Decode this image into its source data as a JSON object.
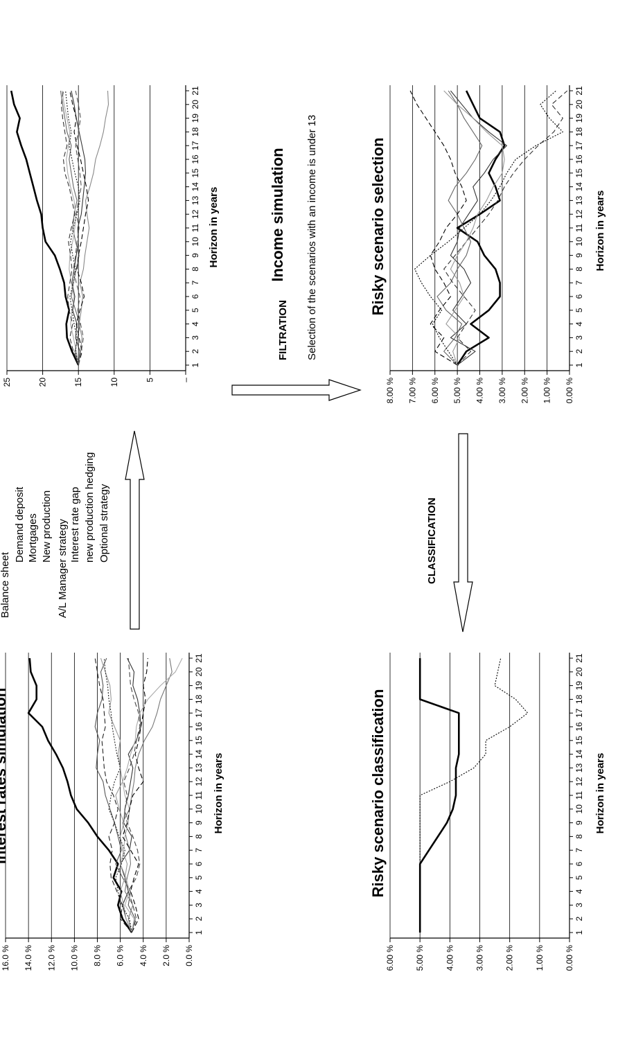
{
  "panels": {
    "interest": {
      "title": "Interest rates simulation",
      "xlabel": "Horizon in years",
      "yticks": [
        "0.0 %",
        "2.0 %",
        "4.0 %",
        "6.0 %",
        "8.0 %",
        "10.0 %",
        "12.0 %",
        "14.0 %",
        "16.0 %"
      ],
      "xticks": [
        "1",
        "2",
        "3",
        "4",
        "5",
        "6",
        "7",
        "8",
        "9",
        "10",
        "11",
        "12",
        "13",
        "14",
        "15",
        "16",
        "17",
        "18",
        "19",
        "20",
        "21"
      ]
    },
    "income": {
      "title": "Income simulation",
      "xlabel": "Horizon in years",
      "yticks": [
        "–",
        "5",
        "10",
        "15",
        "20",
        "25"
      ],
      "xticks": [
        "1",
        "2",
        "3",
        "4",
        "5",
        "6",
        "7",
        "8",
        "9",
        "10",
        "11",
        "12",
        "13",
        "14",
        "15",
        "16",
        "17",
        "18",
        "19",
        "20",
        "21"
      ]
    },
    "selection": {
      "title": "Risky scenario selection",
      "xlabel": "Horizon in years",
      "yticks": [
        "0.00 %",
        "1.00 %",
        "2.00 %",
        "3.00 %",
        "4.00 %",
        "5.00 %",
        "6.00 %",
        "7.00 %",
        "8.00 %"
      ],
      "xticks": [
        "1",
        "2",
        "3",
        "4",
        "5",
        "6",
        "7",
        "8",
        "9",
        "10",
        "11",
        "12",
        "13",
        "14",
        "15",
        "16",
        "17",
        "18",
        "19",
        "20",
        "21"
      ]
    },
    "classification": {
      "title": "Risky scenario classification",
      "xlabel": "Horizon in years",
      "yticks": [
        "0.00 %",
        "1.00 %",
        "2.00 %",
        "3.00 %",
        "4.00 %",
        "5.00 %",
        "6.00 %"
      ],
      "xticks": [
        "1",
        "2",
        "3",
        "4",
        "5",
        "6",
        "7",
        "8",
        "9",
        "10",
        "11",
        "12",
        "13",
        "14",
        "15",
        "16",
        "17",
        "18",
        "19",
        "20",
        "21"
      ]
    }
  },
  "balance": {
    "lines": [
      "Balance sheet",
      "Demand deposit",
      "Mortgages",
      "New production",
      "A/L Manager strategy",
      "Interest rate gap",
      "new production hedging",
      "Optional strategy"
    ]
  },
  "filtration": {
    "label": "FILTRATION",
    "description": "Selection of the scenarios with an income is under 13"
  },
  "classification_label": "CLASSIFICATION",
  "chart_data": [
    {
      "type": "line",
      "title": "Interest rates simulation",
      "xlabel": "Horizon in years",
      "ylim": [
        0,
        16
      ],
      "x": [
        1,
        2,
        3,
        4,
        5,
        6,
        7,
        8,
        9,
        10,
        11,
        12,
        13,
        14,
        15,
        16,
        17,
        18,
        19,
        20,
        21
      ],
      "series": [
        {
          "style": "bold",
          "color": "#000000",
          "values": [
            5.0,
            5.8,
            6.2,
            5.9,
            6.6,
            6.2,
            7.0,
            8.0,
            8.8,
            9.8,
            10.3,
            10.6,
            11.0,
            11.6,
            12.3,
            12.8,
            14.0,
            13.3,
            13.3,
            13.8,
            13.9
          ]
        },
        {
          "style": "solid",
          "color": "#333333",
          "values": [
            5.0,
            5.5,
            5.8,
            5.3,
            5.6,
            6.0,
            5.2,
            5.0,
            5.7,
            5.6,
            5.3,
            5.1,
            4.9,
            5.3,
            4.6,
            4.2,
            4.3,
            4.5,
            4.9,
            4.8,
            5.4
          ]
        },
        {
          "style": "solid",
          "color": "#555555",
          "values": [
            5.0,
            4.7,
            5.3,
            5.1,
            5.8,
            6.4,
            5.9,
            6.2,
            6.5,
            6.9,
            7.3,
            7.5,
            8.1,
            8.0,
            7.8,
            8.2,
            8.0,
            7.6,
            7.5,
            7.7,
            7.2
          ]
        },
        {
          "style": "solid",
          "color": "#777777",
          "values": [
            5.0,
            5.3,
            4.9,
            5.6,
            5.4,
            5.1,
            5.2,
            5.5,
            5.8,
            5.2,
            5.0,
            4.8,
            4.7,
            4.4,
            3.9,
            3.2,
            2.8,
            2.5,
            2.0,
            1.5,
            1.7
          ]
        },
        {
          "style": "solid",
          "color": "#999999",
          "values": [
            5.0,
            5.5,
            5.7,
            6.0,
            5.6,
            5.4,
            5.8,
            6.0,
            5.7,
            6.1,
            6.4,
            5.8,
            6.0,
            6.2,
            6.0,
            6.5,
            7.0,
            6.8,
            6.9,
            7.3,
            7.7
          ]
        },
        {
          "style": "solid",
          "color": "#aaaaaa",
          "values": [
            5.0,
            4.8,
            5.6,
            5.2,
            5.5,
            6.0,
            5.7,
            5.6,
            5.3,
            5.2,
            5.6,
            5.8,
            5.4,
            5.1,
            4.7,
            4.6,
            4.3,
            3.6,
            2.5,
            1.2,
            0.6
          ]
        },
        {
          "style": "dashed",
          "color": "#000000",
          "values": [
            5.0,
            4.4,
            4.7,
            5.1,
            4.8,
            4.4,
            5.1,
            5.8,
            5.4,
            5.2,
            4.9,
            4.0,
            4.4,
            4.7,
            4.4,
            4.2,
            4.0,
            3.8,
            4.0,
            3.7,
            3.6
          ]
        },
        {
          "style": "dashed",
          "color": "#222222",
          "values": [
            5.0,
            6.0,
            5.8,
            6.3,
            6.8,
            6.9,
            6.7,
            7.0,
            6.5,
            6.2,
            6.6,
            7.2,
            7.4,
            7.5,
            7.6,
            7.3,
            7.4,
            7.5,
            7.8,
            8.0,
            8.2
          ]
        },
        {
          "style": "dotted",
          "color": "#222222",
          "values": [
            5.0,
            5.2,
            5.9,
            6.2,
            6.4,
            5.9,
            5.6,
            6.1,
            6.5,
            7.0,
            6.8,
            6.5,
            6.0,
            6.3,
            6.5,
            6.7,
            6.8,
            7.0,
            7.1,
            7.3,
            7.4
          ]
        },
        {
          "style": "dashed",
          "color": "#444444",
          "values": [
            5.0,
            4.6,
            4.9,
            5.3,
            4.6,
            4.3,
            4.5,
            4.9,
            5.4,
            5.6,
            5.4,
            5.7,
            5.2,
            4.8,
            4.6,
            4.3,
            4.4,
            4.8,
            5.1,
            5.2,
            5.3
          ]
        }
      ]
    },
    {
      "type": "line",
      "title": "Income simulation",
      "xlabel": "Horizon in years",
      "ylim": [
        0,
        25
      ],
      "x": [
        1,
        2,
        3,
        4,
        5,
        6,
        7,
        8,
        9,
        10,
        11,
        12,
        13,
        14,
        15,
        16,
        17,
        18,
        19,
        20,
        21
      ],
      "series": [
        {
          "style": "bold",
          "color": "#000000",
          "values": [
            15,
            15.9,
            16.6,
            16.7,
            16.3,
            16.8,
            17.0,
            17.6,
            18.3,
            19.6,
            20.0,
            20.2,
            20.8,
            21.3,
            21.8,
            22.3,
            23.0,
            23.6,
            23.2,
            24.0,
            24.4
          ]
        },
        {
          "style": "solid",
          "color": "#333333",
          "values": [
            15,
            14.8,
            15.4,
            15.2,
            15.8,
            15.5,
            15.9,
            15.6,
            15.3,
            15.0,
            15.1,
            14.6,
            14.4,
            14.2,
            14.0,
            14.1,
            14.5,
            14.9,
            15.3,
            15.6,
            16.0
          ]
        },
        {
          "style": "solid",
          "color": "#666666",
          "values": [
            15,
            15.5,
            15.1,
            14.8,
            15.4,
            16.0,
            15.7,
            15.3,
            14.9,
            15.4,
            15.8,
            15.6,
            15.2,
            15.7,
            16.0,
            16.3,
            16.0,
            16.6,
            16.9,
            17.2,
            17.5
          ]
        },
        {
          "style": "solid",
          "color": "#888888",
          "values": [
            15,
            14.7,
            14.5,
            14.9,
            14.6,
            14.4,
            14.8,
            14.3,
            14.1,
            13.8,
            13.5,
            13.8,
            14.0,
            13.4,
            12.9,
            12.6,
            12.0,
            11.5,
            11.2,
            10.8,
            10.9
          ]
        },
        {
          "style": "solid",
          "color": "#aaaaaa",
          "values": [
            15,
            15.3,
            15.7,
            16.1,
            15.9,
            15.6,
            16.0,
            16.3,
            16.2,
            15.8,
            15.5,
            15.4,
            15.6,
            16.1,
            16.5,
            16.7,
            16.4,
            16.2,
            16.6,
            17.0,
            17.3
          ]
        },
        {
          "style": "dashed",
          "color": "#000000",
          "values": [
            15,
            14.5,
            14.9,
            15.3,
            14.8,
            14.2,
            14.6,
            15.2,
            15.0,
            14.6,
            14.3,
            14.0,
            13.6,
            13.9,
            14.3,
            14.7,
            15.2,
            15.6,
            15.3,
            15.8,
            16.2
          ]
        },
        {
          "style": "dashed",
          "color": "#333333",
          "values": [
            15,
            15.7,
            16.2,
            15.8,
            16.3,
            16.5,
            16.2,
            15.9,
            16.1,
            16.4,
            16.0,
            15.5,
            15.9,
            16.3,
            16.9,
            17.1,
            16.6,
            16.9,
            17.2,
            17.4,
            17.1
          ]
        },
        {
          "style": "dotted",
          "color": "#222222",
          "values": [
            15,
            15.4,
            15.2,
            15.6,
            15.9,
            16.2,
            15.7,
            15.4,
            15.8,
            16.1,
            15.7,
            15.2,
            14.8,
            15.0,
            15.5,
            15.9,
            16.3,
            16.0,
            16.4,
            16.6,
            16.8
          ]
        },
        {
          "style": "dashed",
          "color": "#555555",
          "values": [
            15,
            14.6,
            14.3,
            14.7,
            15.1,
            14.8,
            15.3,
            15.7,
            15.4,
            15.2,
            14.9,
            15.3,
            15.0,
            14.6,
            14.8,
            15.1,
            15.4,
            15.0,
            14.7,
            15.0,
            15.4
          ]
        }
      ]
    },
    {
      "type": "line",
      "title": "Risky scenario selection",
      "xlabel": "Horizon in years",
      "ylim": [
        0,
        8
      ],
      "x": [
        1,
        2,
        3,
        4,
        5,
        6,
        7,
        8,
        9,
        10,
        11,
        12,
        13,
        14,
        15,
        16,
        17,
        18,
        19,
        20,
        21
      ],
      "series": [
        {
          "style": "bold",
          "color": "#000000",
          "values": [
            5.0,
            4.6,
            3.6,
            4.4,
            3.6,
            3.1,
            3.1,
            3.3,
            3.8,
            4.1,
            5.0,
            4.0,
            3.1,
            3.3,
            3.6,
            3.3,
            2.9,
            3.1,
            4.0,
            4.3,
            4.6
          ]
        },
        {
          "style": "solid",
          "color": "#333333",
          "values": [
            5.0,
            4.2,
            5.3,
            4.6,
            5.2,
            4.8,
            4.4,
            4.7,
            5.3,
            5.0,
            4.9,
            4.5,
            4.1,
            4.3,
            3.8,
            3.4,
            2.8,
            3.6,
            4.3,
            4.8,
            5.3
          ]
        },
        {
          "style": "solid",
          "color": "#666666",
          "values": [
            5.0,
            5.6,
            5.1,
            4.8,
            5.5,
            5.9,
            5.3,
            5.0,
            4.6,
            4.4,
            4.7,
            5.0,
            5.4,
            5.1,
            4.6,
            4.2,
            3.9,
            4.3,
            4.7,
            5.0,
            5.4
          ]
        },
        {
          "style": "dashed",
          "color": "#000000",
          "values": [
            5.0,
            6.0,
            5.6,
            6.2,
            5.8,
            5.3,
            5.6,
            6.0,
            6.2,
            5.8,
            5.5,
            5.0,
            4.6,
            4.8,
            5.1,
            5.3,
            5.6,
            6.0,
            6.4,
            6.8,
            7.1
          ]
        },
        {
          "style": "dashed",
          "color": "#333333",
          "values": [
            5.0,
            4.4,
            5.0,
            4.6,
            4.2,
            4.7,
            5.2,
            5.6,
            5.1,
            4.6,
            4.1,
            3.6,
            3.2,
            2.9,
            2.5,
            2.0,
            1.4,
            0.7,
            0.3,
            0.8,
            0.1
          ]
        },
        {
          "style": "dotted",
          "color": "#000000",
          "values": [
            5.0,
            5.4,
            5.8,
            6.1,
            5.7,
            6.2,
            6.6,
            6.9,
            6.2,
            5.4,
            4.7,
            4.0,
            3.5,
            3.1,
            2.8,
            2.4,
            1.5,
            0.3,
            0.9,
            1.3,
            0.6
          ]
        },
        {
          "style": "solid",
          "color": "#999999",
          "values": [
            5.0,
            5.2,
            4.9,
            5.5,
            5.1,
            4.7,
            4.9,
            5.3,
            5.0,
            4.6,
            4.3,
            4.1,
            3.7,
            3.4,
            3.0,
            2.9,
            3.0,
            3.7,
            4.3,
            5.0,
            5.6
          ]
        }
      ]
    },
    {
      "type": "line",
      "title": "Risky scenario classification",
      "xlabel": "Horizon in years",
      "ylim": [
        0,
        6
      ],
      "x": [
        1,
        2,
        3,
        4,
        5,
        6,
        7,
        8,
        9,
        10,
        11,
        12,
        13,
        14,
        15,
        16,
        17,
        18,
        19,
        20,
        21
      ],
      "series": [
        {
          "style": "bold",
          "color": "#000000",
          "values": [
            5.0,
            5.0,
            5.0,
            5.0,
            5.0,
            5.0,
            4.7,
            4.4,
            4.1,
            3.9,
            3.8,
            3.8,
            3.8,
            3.7,
            3.7,
            3.7,
            3.7,
            5.0,
            5.0,
            5.0,
            5.0
          ]
        },
        {
          "style": "dotted",
          "color": "#000000",
          "values": [
            5.0,
            5.0,
            5.0,
            5.0,
            5.0,
            5.0,
            5.0,
            5.0,
            5.0,
            5.0,
            5.0,
            4.0,
            3.2,
            2.8,
            2.8,
            2.0,
            1.4,
            1.8,
            2.5,
            2.4,
            2.3
          ]
        }
      ]
    }
  ]
}
